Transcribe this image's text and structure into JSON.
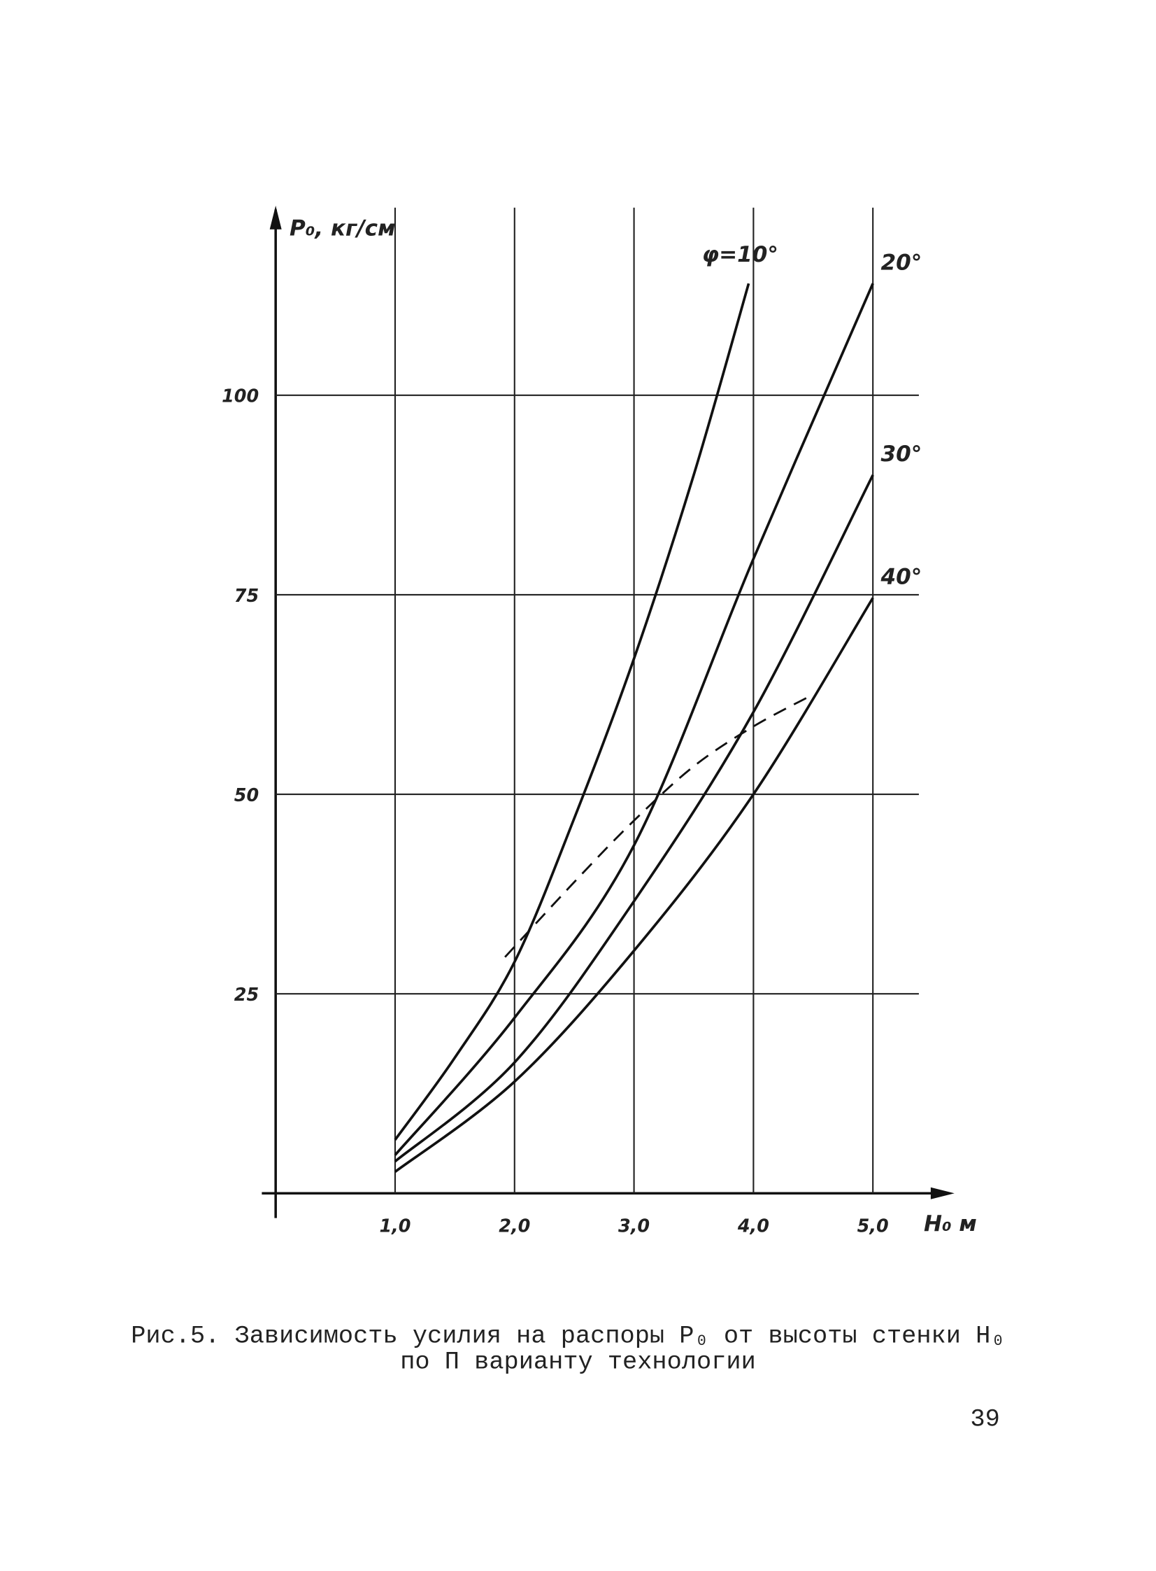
{
  "chart_data": {
    "type": "line",
    "y_label": "P₀, кг/см",
    "x_label": "H₀ м",
    "xlim": [
      0,
      5.6
    ],
    "ylim": [
      0,
      124
    ],
    "xticks": [
      {
        "value": 1,
        "label": "1,0"
      },
      {
        "value": 2,
        "label": "2,0"
      },
      {
        "value": 3,
        "label": "3,0"
      },
      {
        "value": 4,
        "label": "4,0"
      },
      {
        "value": 5,
        "label": "5,0"
      }
    ],
    "yticks": [
      25,
      50,
      75,
      100
    ],
    "grid": true,
    "series": [
      {
        "name": "φ=10°",
        "color": "#111111",
        "x": [
          1,
          1.5,
          2,
          2.5,
          3,
          3.5,
          3.96
        ],
        "values": [
          6.7,
          17,
          29,
          47,
          67,
          90,
          114
        ]
      },
      {
        "name": "20°",
        "color": "#111111",
        "x": [
          1,
          2,
          3,
          4,
          5
        ],
        "values": [
          4.8,
          22,
          43.6,
          79.5,
          114
        ]
      },
      {
        "name": "30°",
        "color": "#111111",
        "x": [
          1,
          2,
          3,
          4,
          5
        ],
        "values": [
          4,
          16.4,
          36.6,
          60.3,
          90
        ]
      },
      {
        "name": "40°",
        "color": "#111111",
        "x": [
          1,
          2,
          3,
          4,
          5
        ],
        "values": [
          2.7,
          14,
          30.4,
          50,
          74.6
        ]
      },
      {
        "color": "#111111",
        "style": "dashed",
        "x": [
          1.92,
          2.5,
          3,
          3.5,
          4,
          4.5
        ],
        "values": [
          29.6,
          39,
          46.7,
          53.5,
          58.5,
          62.5
        ]
      }
    ]
  },
  "caption": [
    "Рис.5. Зависимость усилия на распоры P₀ от высоты стенки H₀",
    "по П варианту технологии"
  ],
  "page_number": "39"
}
